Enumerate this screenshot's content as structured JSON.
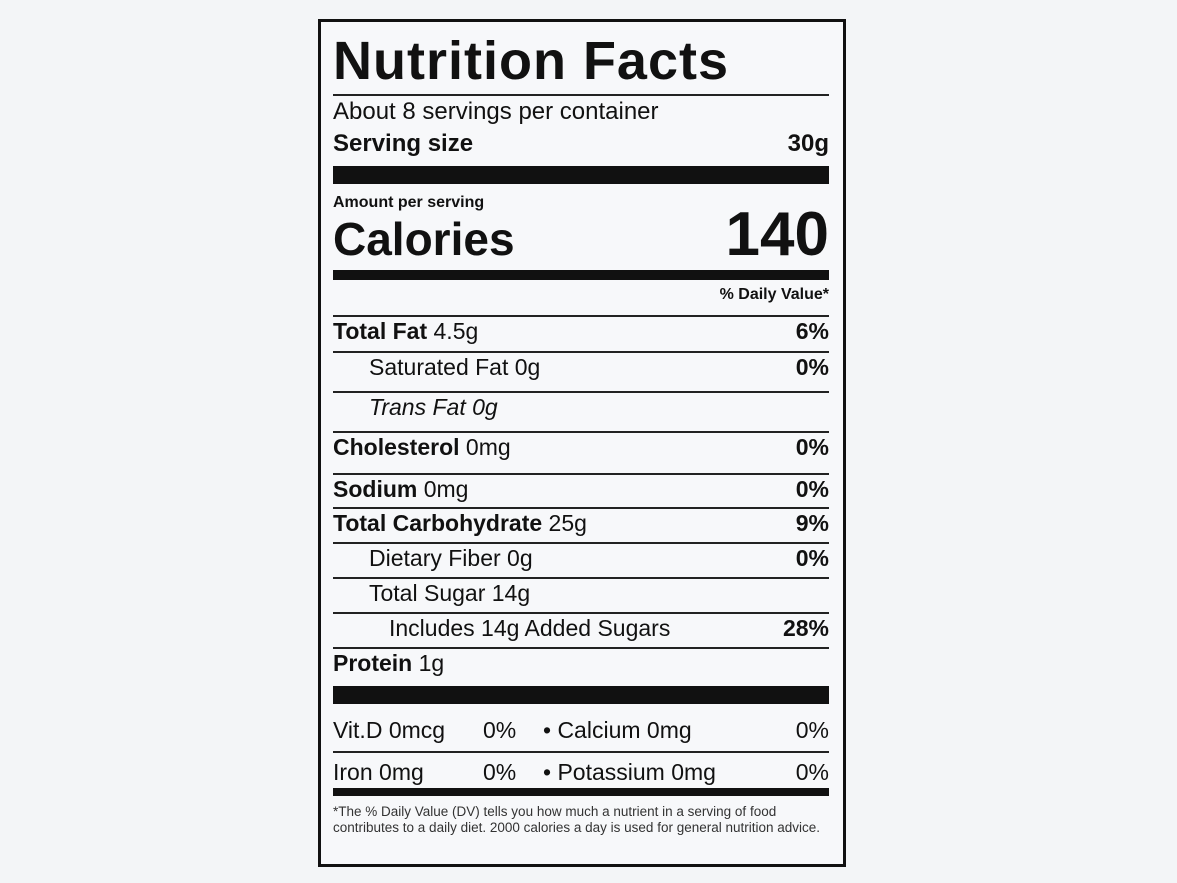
{
  "title": "Nutrition Facts",
  "servings": "About 8 servings per container",
  "serving_size": {
    "label": "Serving size",
    "value": "30g"
  },
  "amount_per_serving": "Amount per serving",
  "calories": {
    "label": "Calories",
    "value": "140"
  },
  "dv_header": "% Daily Value*",
  "nutrients": [
    {
      "name": "Total Fat",
      "amount": "4.5g",
      "dv": "6%"
    },
    {
      "name": "Saturated Fat",
      "amount": "0g",
      "dv": "0%"
    },
    {
      "name": "Trans Fat",
      "amount": "0g",
      "dv": ""
    },
    {
      "name": "Cholesterol",
      "amount": "0mg",
      "dv": "0%"
    },
    {
      "name": "Sodium",
      "amount": "0mg",
      "dv": "0%"
    },
    {
      "name": "Total Carbohydrate",
      "amount": "25g",
      "dv": "9%"
    },
    {
      "name": "Dietary Fiber",
      "amount": "0g",
      "dv": "0%"
    },
    {
      "name": "Total Sugar",
      "amount": "14g",
      "dv": ""
    },
    {
      "name": "Includes 14g Added Sugars",
      "amount": "",
      "dv": "28%"
    },
    {
      "name": "Protein",
      "amount": "1g",
      "dv": ""
    }
  ],
  "vitamins": [
    {
      "left": "Vit.D 0mcg",
      "left_dv": "0%",
      "right": "• Calcium 0mg",
      "right_dv": "0%"
    },
    {
      "left": "Iron 0mg",
      "left_dv": "0%",
      "right": "• Potassium 0mg",
      "right_dv": "0%"
    }
  ],
  "footnote": "*The % Daily Value (DV) tells you how much a nutrient in a serving of food contributes to a daily diet. 2000 calories a day is used for general nutrition advice."
}
